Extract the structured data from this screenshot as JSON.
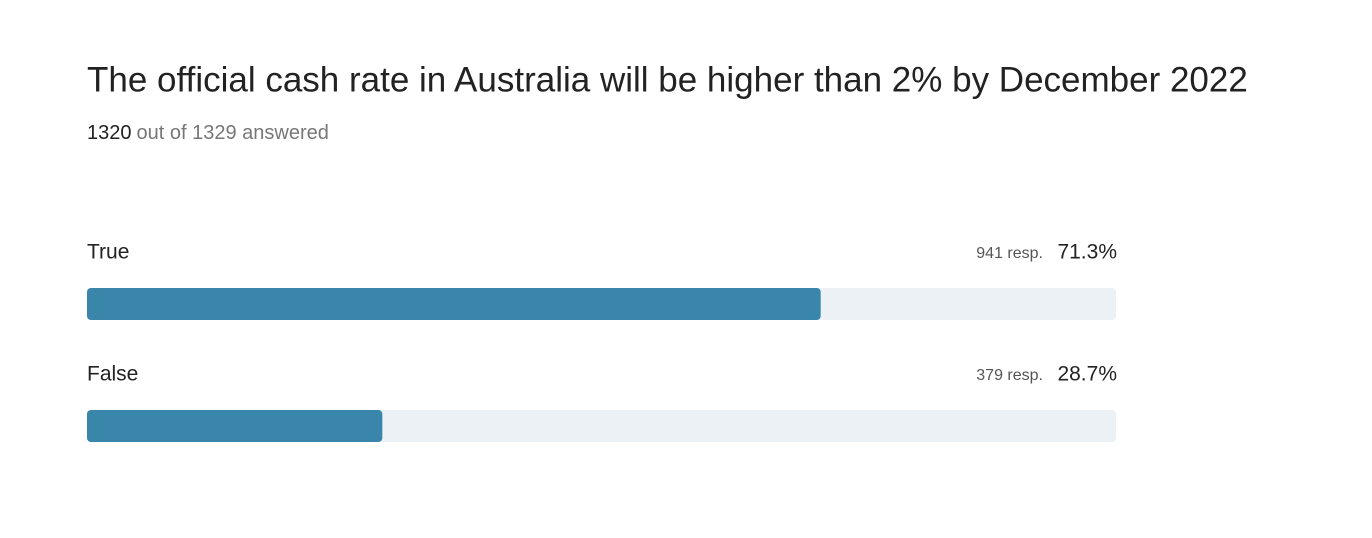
{
  "chart_data": {
    "type": "bar",
    "orientation": "horizontal",
    "title": "The official cash rate in Australia will be higher than 2% by December 2022",
    "answered": 1320,
    "subtitle": "out of 1329 answered",
    "categories": [
      "True",
      "False"
    ],
    "values": [
      71.3,
      28.7
    ],
    "value_labels": [
      "71.3%",
      "28.7%"
    ],
    "response_labels": [
      "941 resp.",
      "379 resp."
    ],
    "xlim": [
      0,
      100
    ],
    "color": "#3a86ab",
    "track_color": "#ebf1f5"
  }
}
